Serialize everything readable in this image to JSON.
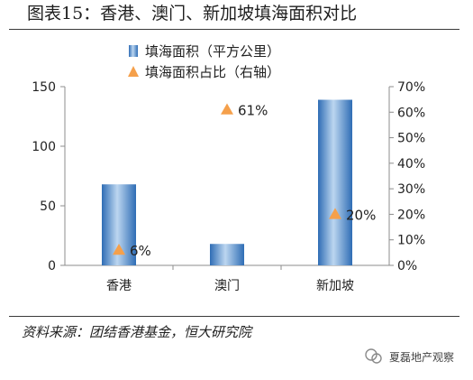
{
  "title": "图表15：香港、澳门、新加坡填海面积对比",
  "source": "资料来源：团结香港基金，恒大研究院",
  "watermark": "夏磊地产观察",
  "chart_data": {
    "type": "bar",
    "categories": [
      "香港",
      "澳门",
      "新加坡"
    ],
    "series": [
      {
        "name": "填海面积（平方公里）",
        "kind": "bar",
        "axis": "left",
        "values": [
          68,
          18,
          139
        ],
        "color": "#4a86c8"
      },
      {
        "name": "填海面积占比（右轴）",
        "kind": "marker",
        "axis": "right",
        "values": [
          6,
          61,
          20
        ],
        "labels": [
          "6%",
          "61%",
          "20%"
        ],
        "color": "#f5a04b"
      }
    ],
    "y_left": {
      "lim": [
        0,
        150
      ],
      "ticks": [
        "0",
        "50",
        "100",
        "150"
      ]
    },
    "y_right": {
      "lim": [
        0,
        70
      ],
      "ticks": [
        "0%",
        "10%",
        "20%",
        "30%",
        "40%",
        "50%",
        "60%",
        "70%"
      ]
    },
    "legend": "top-center",
    "grid": false
  }
}
